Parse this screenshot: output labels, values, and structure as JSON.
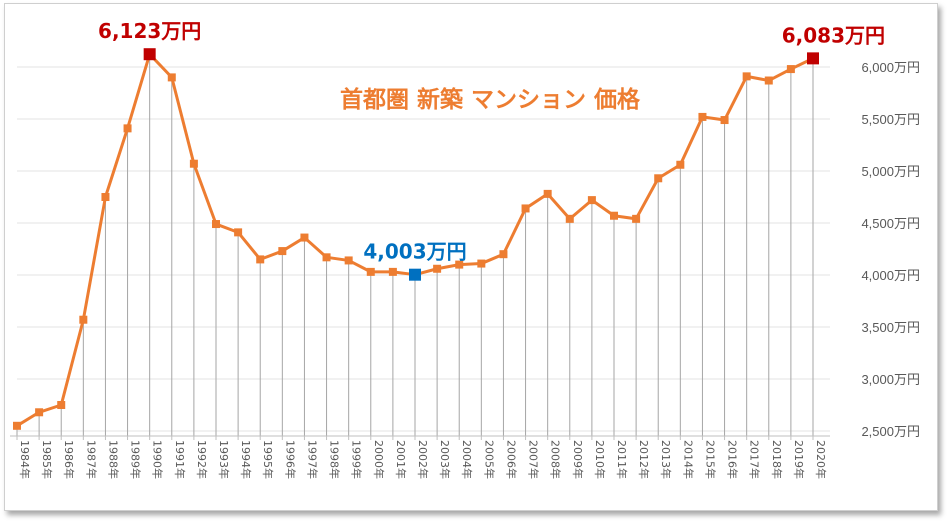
{
  "chart_data": {
    "type": "line",
    "title": "首都圏 新築 マンション 価格",
    "xlabel": "",
    "ylabel": "",
    "ylim": [
      2500,
      6000
    ],
    "yticks": [
      2500,
      3000,
      3500,
      4000,
      4500,
      5000,
      5500,
      6000
    ],
    "ytick_suffix": "万円",
    "grid": "vertical drop lines",
    "legend": "none",
    "categories": [
      "1984年",
      "1985年",
      "1986年",
      "1987年",
      "1988年",
      "1989年",
      "1990年",
      "1991年",
      "1992年",
      "1993年",
      "1994年",
      "1995年",
      "1996年",
      "1997年",
      "1998年",
      "1999年",
      "2000年",
      "2001年",
      "2002年",
      "2003年",
      "2004年",
      "2005年",
      "2006年",
      "2007年",
      "2008年",
      "2009年",
      "2010年",
      "2011年",
      "2012年",
      "2013年",
      "2014年",
      "2015年",
      "2016年",
      "2017年",
      "2018年",
      "2019年",
      "2020年"
    ],
    "series": [
      {
        "values": [
          2550,
          2680,
          2750,
          3570,
          4750,
          5410,
          6123,
          5900,
          5070,
          4490,
          4410,
          4150,
          4230,
          4360,
          4170,
          4140,
          4030,
          4030,
          4003,
          4060,
          4100,
          4110,
          4200,
          4640,
          4780,
          4540,
          4720,
          4570,
          4540,
          4930,
          5060,
          5520,
          5490,
          5910,
          5870,
          5980,
          6083
        ]
      }
    ],
    "highlights": [
      {
        "index": 6,
        "label": "6,123万円",
        "color": "#c00000"
      },
      {
        "index": 18,
        "label": "4,003万円",
        "color": "#0070c0"
      },
      {
        "index": 36,
        "label": "6,083万円",
        "color": "#c00000"
      }
    ],
    "colors": {
      "line": "#ed7d31",
      "title": "#ed7d31",
      "max_marker": "#c00000",
      "min_marker": "#0070c0",
      "drop_line": "#a6a6a6",
      "axis_text": "#595959"
    }
  }
}
